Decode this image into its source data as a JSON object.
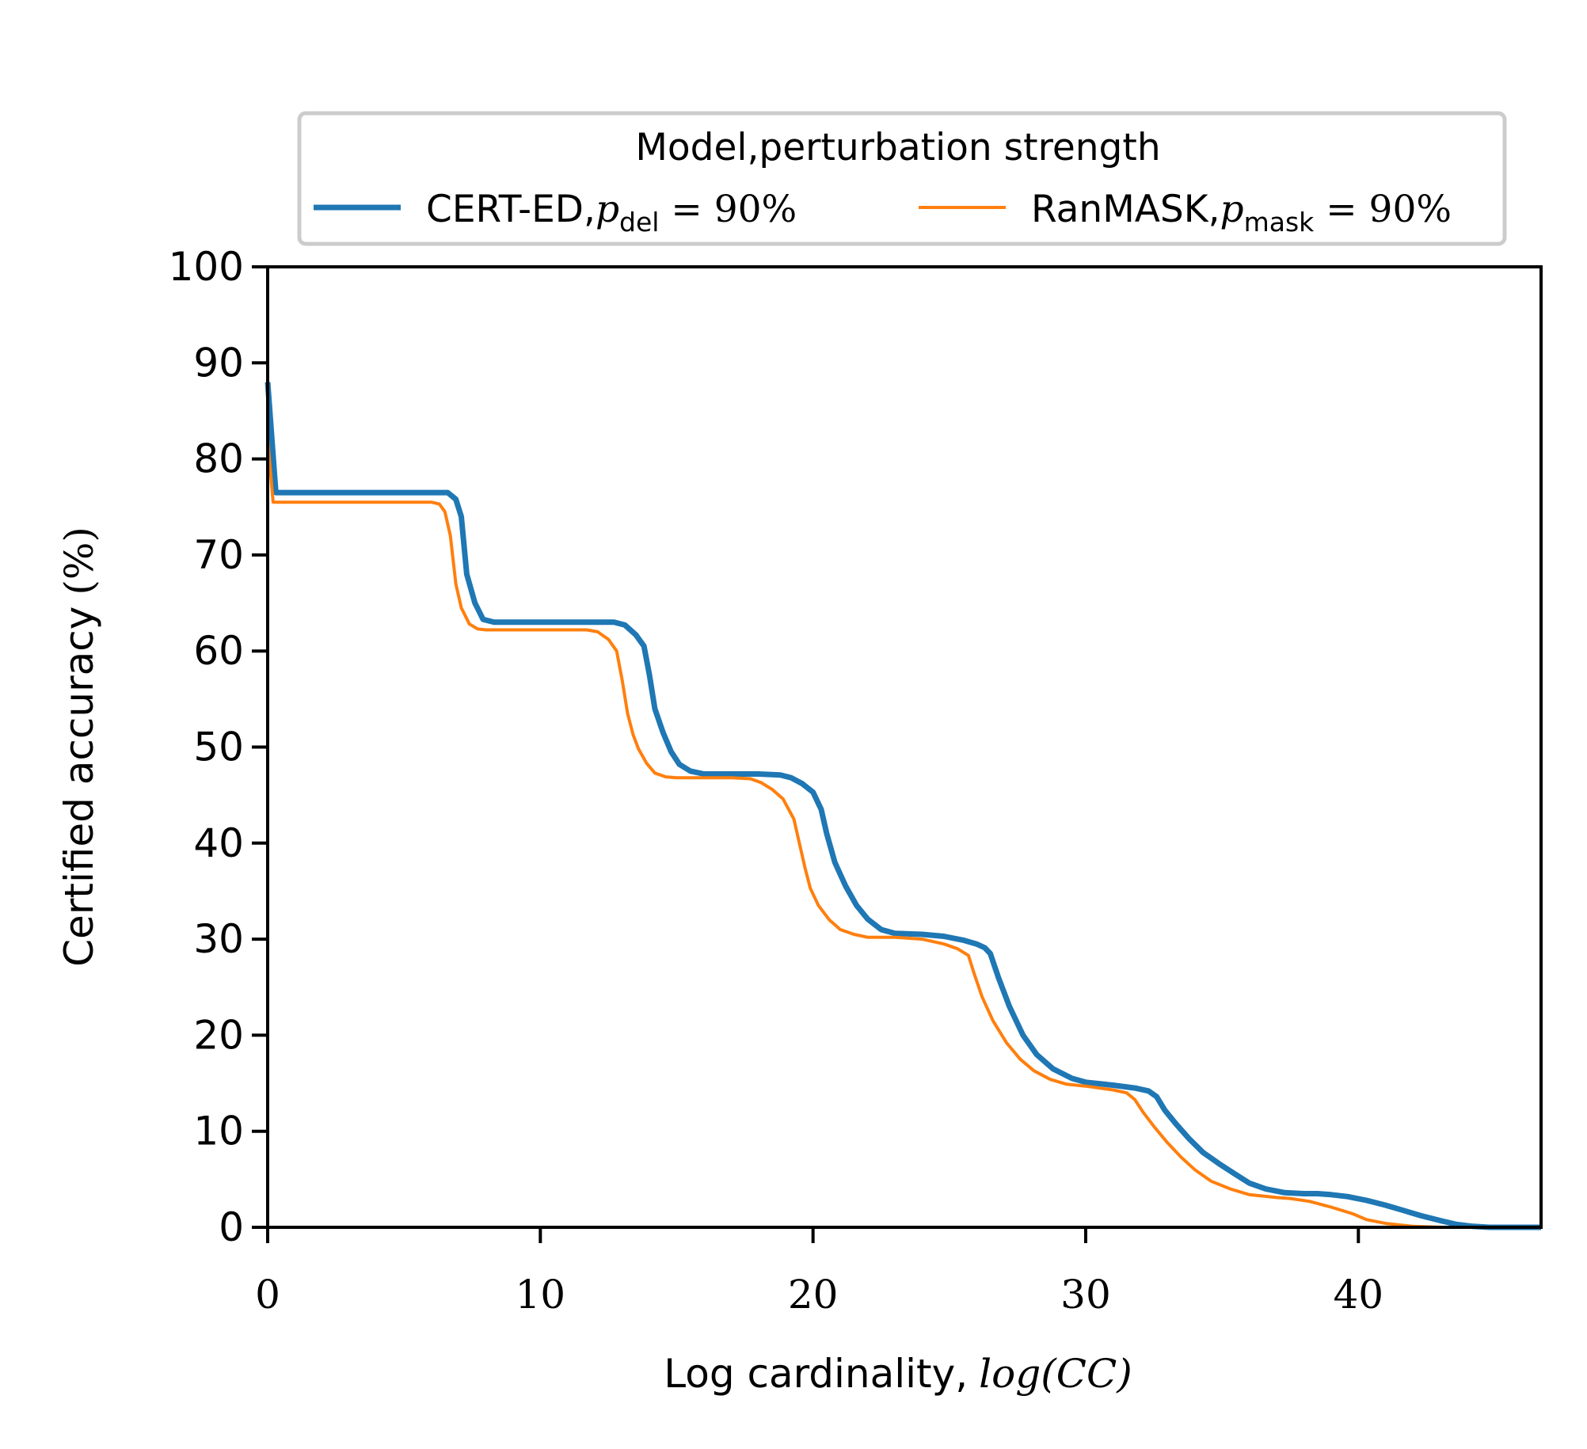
{
  "chart_data": {
    "type": "line",
    "title": "",
    "xlabel": "Log cardinality,",
    "xlabel_math": "log(CC)",
    "ylabel": "Certified accuracy",
    "ylabel_math": "(%)",
    "xlim": [
      0,
      46.7
    ],
    "ylim": [
      0,
      100
    ],
    "xticks": [
      0,
      10,
      20,
      30,
      40
    ],
    "yticks": [
      0,
      10,
      20,
      30,
      40,
      50,
      60,
      70,
      80,
      90,
      100
    ],
    "grid": false,
    "legend": {
      "title": "Model,perturbation strength",
      "location": "top-center",
      "entries": [
        {
          "name": "CERT-ED,",
          "sym": "p",
          "sub": "del",
          "rest": " = 90%"
        },
        {
          "name": "RanMASK,",
          "sym": "p",
          "sub": "mask",
          "rest": " = 90%"
        }
      ]
    },
    "series": [
      {
        "name": "CERT-ED, p_del = 90%",
        "color": "#1f77b4",
        "x": [
          0,
          0.3,
          1,
          2,
          3,
          4,
          5,
          6,
          6.6,
          6.9,
          7.1,
          7.3,
          7.6,
          7.9,
          8.3,
          9,
          10,
          11,
          12,
          12.7,
          13.1,
          13.5,
          13.8,
          14,
          14.2,
          14.5,
          14.8,
          15.1,
          15.5,
          16,
          17,
          18,
          18.8,
          19.2,
          19.6,
          20,
          20.3,
          20.5,
          20.8,
          21.2,
          21.6,
          22,
          22.5,
          23,
          24,
          24.8,
          25.5,
          26,
          26.3,
          26.5,
          26.8,
          27.2,
          27.7,
          28.2,
          28.8,
          29.5,
          30,
          31,
          31.8,
          32.3,
          32.6,
          32.9,
          33.3,
          33.8,
          34.3,
          34.9,
          35.5,
          36,
          36.6,
          37.3,
          38,
          38.5,
          39,
          39.6,
          40.3,
          41,
          41.6,
          42.3,
          43,
          43.6,
          44.2,
          44.8,
          45.5,
          46.7
        ],
        "y": [
          88,
          76.5,
          76.5,
          76.5,
          76.5,
          76.5,
          76.5,
          76.5,
          76.5,
          75.8,
          74,
          68,
          65,
          63.3,
          63,
          63,
          63,
          63,
          63,
          63,
          62.7,
          61.7,
          60.5,
          57.5,
          54,
          51.5,
          49.5,
          48.2,
          47.5,
          47.2,
          47.2,
          47.2,
          47.1,
          46.8,
          46.2,
          45.3,
          43.5,
          41,
          38,
          35.5,
          33.5,
          32.1,
          31,
          30.6,
          30.5,
          30.3,
          29.9,
          29.5,
          29.1,
          28.5,
          26,
          23,
          20,
          18,
          16.5,
          15.5,
          15.1,
          14.8,
          14.5,
          14.2,
          13.6,
          12.2,
          10.8,
          9.2,
          7.8,
          6.6,
          5.5,
          4.6,
          4,
          3.6,
          3.5,
          3.5,
          3.4,
          3.2,
          2.8,
          2.3,
          1.8,
          1.2,
          0.7,
          0.3,
          0.1,
          0,
          0,
          0
        ]
      },
      {
        "name": "RanMASK, p_mask = 90%",
        "color": "#ff7f0e",
        "x": [
          0,
          0.2,
          1,
          2,
          3,
          4,
          5,
          6,
          6.3,
          6.5,
          6.7,
          6.9,
          7.1,
          7.4,
          7.7,
          8,
          9,
          10,
          11,
          11.7,
          12.1,
          12.5,
          12.8,
          13,
          13.2,
          13.4,
          13.6,
          13.9,
          14.2,
          14.6,
          15,
          16,
          17,
          17.7,
          18.1,
          18.5,
          18.9,
          19.3,
          19.5,
          19.7,
          19.9,
          20.2,
          20.6,
          21,
          21.5,
          22,
          23,
          24,
          24.8,
          25.3,
          25.7,
          25.9,
          26.2,
          26.6,
          27.1,
          27.6,
          28.1,
          28.7,
          29.3,
          30,
          31,
          31.5,
          31.8,
          32.1,
          32.5,
          33,
          33.5,
          34,
          34.6,
          35.3,
          36,
          37,
          37.5,
          38.2,
          39,
          39.8,
          40.3,
          41,
          42,
          43,
          46.7
        ],
        "y": [
          82,
          75.5,
          75.5,
          75.5,
          75.5,
          75.5,
          75.5,
          75.5,
          75.3,
          74.5,
          72,
          67,
          64.5,
          62.8,
          62.3,
          62.2,
          62.2,
          62.2,
          62.2,
          62.2,
          62,
          61.2,
          60,
          57,
          53.5,
          51.3,
          49.8,
          48.3,
          47.3,
          46.9,
          46.8,
          46.8,
          46.8,
          46.7,
          46.3,
          45.6,
          44.6,
          42.5,
          40,
          37.5,
          35.3,
          33.5,
          32,
          31,
          30.5,
          30.2,
          30.2,
          30,
          29.5,
          29,
          28.3,
          26.5,
          24,
          21.5,
          19.2,
          17.5,
          16.3,
          15.4,
          14.9,
          14.7,
          14.3,
          14,
          13.3,
          12,
          10.5,
          8.8,
          7.3,
          6,
          4.8,
          4,
          3.4,
          3.1,
          3,
          2.7,
          2.1,
          1.4,
          0.8,
          0.4,
          0.1,
          0,
          0
        ]
      }
    ]
  }
}
